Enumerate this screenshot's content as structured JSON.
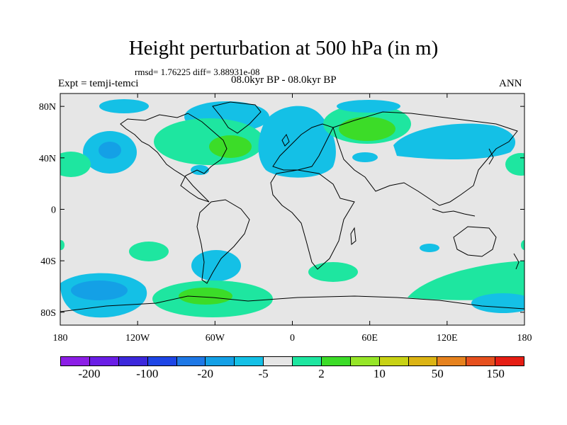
{
  "title": "Height perturbation at 500 hPa (in m)",
  "stats": "rmsd= 1.76225 diff= 3.88931e-08",
  "left_label": "Expt = temji-temci",
  "center_label": "08.0kyr BP - 08.0kyr BP",
  "right_label": "ANN",
  "y_ticks": [
    "80N",
    "40N",
    "0",
    "40S",
    "80S"
  ],
  "x_ticks": [
    "180",
    "120W",
    "60W",
    "0",
    "60E",
    "120E",
    "180"
  ],
  "colorbar": {
    "colors": [
      "#8c1ee6",
      "#6a1ee6",
      "#3c28dc",
      "#1e46e6",
      "#1e78e6",
      "#14a0e6",
      "#14c0e6",
      "#e6e6e6",
      "#1ee6a0",
      "#3cdc28",
      "#96e628",
      "#c8d214",
      "#dcb414",
      "#e6821e",
      "#e6501e",
      "#e61e14"
    ],
    "labels": [
      "-200",
      "-100",
      "-20",
      "-5",
      "2",
      "10",
      "50",
      "150"
    ]
  },
  "colors": {
    "background": "#e6e6e6",
    "neg_light": "#14c0e6",
    "neg_mid": "#14a0e6",
    "pos_light": "#1ee6a0",
    "pos_mid": "#3cdc28"
  }
}
